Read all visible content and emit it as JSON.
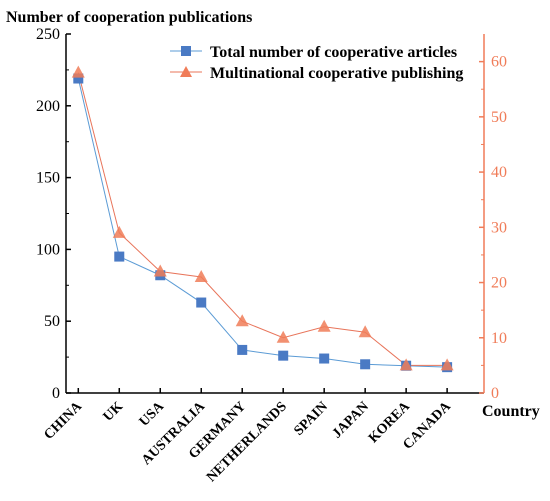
{
  "chart_data": {
    "type": "line",
    "ylabel_left": "Number of cooperation publications",
    "xlabel": "Country",
    "categories": [
      "CHINA",
      "UK",
      "USA",
      "AUSTRALIA",
      "GERMANY",
      "NETHERLANDS",
      "SPAIN",
      "JAPAN",
      "KOREA",
      "CANADA"
    ],
    "y_left_range": [
      0,
      250
    ],
    "y_left_ticks": [
      "0",
      "50",
      "100",
      "150",
      "200",
      "250"
    ],
    "y_right_range": [
      0,
      65
    ],
    "y_right_ticks": [
      "0",
      "10",
      "20",
      "30",
      "40",
      "50",
      "60"
    ],
    "grid": false,
    "legend_position": "top-right",
    "series": [
      {
        "name": "Total number of cooperative articles",
        "axis": "left",
        "marker": "square",
        "color": "#4a7ac4",
        "line_color": "#5b9bd5",
        "values": [
          219,
          95,
          82,
          63,
          30,
          26,
          24,
          20,
          19,
          18
        ]
      },
      {
        "name": "Multinational cooperative publishing",
        "axis": "right",
        "marker": "triangle",
        "color": "#f07c58",
        "line_color": "#e8745a",
        "values": [
          58,
          29,
          22,
          21,
          13,
          10,
          12,
          11,
          5,
          5
        ]
      }
    ],
    "right_axis_color": "#f07c58"
  }
}
